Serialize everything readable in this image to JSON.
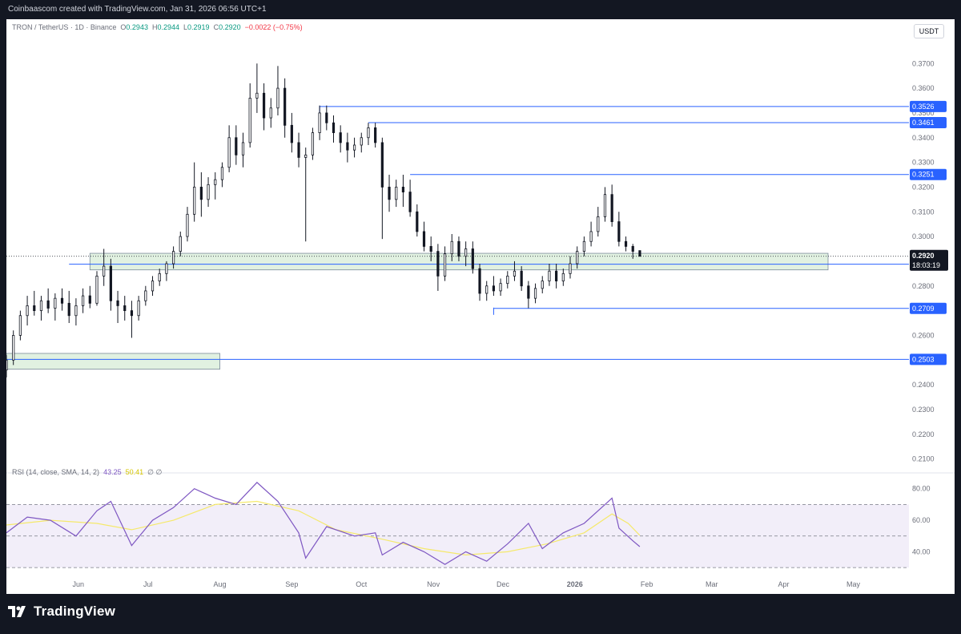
{
  "header": {
    "watermark_text": "Coinbaascom created with TradingView.com, Jan 31, 2026 06:56 UTC+1"
  },
  "branding": {
    "logo_text": "TradingView",
    "logo_icon": "tradingview-logo-icon"
  },
  "chart_legend": {
    "symbol": "TRON / TetherUS · 1D · Binance",
    "open_label": "O",
    "open": "0.2943",
    "high_label": "H",
    "high": "0.2944",
    "low_label": "L",
    "low": "0.2919",
    "close_label": "C",
    "close": "0.2920",
    "change": "−0.0022 (−0.75%)"
  },
  "currency_button": "USDT",
  "rsi_legend": {
    "label": "RSI (14, close, SMA, 14, 2)",
    "rsi_value": "43.25",
    "sma_value": "50.41",
    "extra": "∅ ∅"
  },
  "price_axis": {
    "ticks": [
      "0.3700",
      "0.3600",
      "0.3500",
      "0.3400",
      "0.3300",
      "0.3200",
      "0.3100",
      "0.3000",
      "0.2900",
      "0.2800",
      "0.2700",
      "0.2600",
      "0.2500",
      "0.2400",
      "0.2300",
      "0.2200",
      "0.2100"
    ],
    "current_price": "0.2920",
    "countdown": "18:03:19"
  },
  "rsi_axis": {
    "ticks": [
      "80.00",
      "60.00",
      "40.00"
    ]
  },
  "time_axis": {
    "labels": [
      "Jun",
      "Jul",
      "Aug",
      "Sep",
      "Oct",
      "Nov",
      "Dec",
      "2026",
      "Feb",
      "Mar",
      "Apr",
      "May"
    ]
  },
  "colors": {
    "background": "#131722",
    "panel": "#ffffff",
    "candle": "#131722",
    "level_line": "#2962ff",
    "zone_fill": "#c8e6c9",
    "rsi_line": "#7e57c2",
    "rsi_sma": "#f5e96b",
    "rsi_band": "#ede7f6",
    "price_tag_bg": "#131722"
  },
  "chart_data": {
    "type": "candlestick",
    "symbol": "TRON / TetherUS",
    "interval": "1D",
    "exchange": "Binance",
    "x_range": [
      "2025-05-01",
      "2026-05-25"
    ],
    "y_range": [
      0.205,
      0.373
    ],
    "candles": [
      [
        "2025-05-01",
        0.246,
        0.252,
        0.243,
        0.25
      ],
      [
        "2025-05-04",
        0.25,
        0.262,
        0.248,
        0.26
      ],
      [
        "2025-05-07",
        0.26,
        0.27,
        0.258,
        0.268
      ],
      [
        "2025-05-10",
        0.268,
        0.276,
        0.264,
        0.272
      ],
      [
        "2025-05-13",
        0.272,
        0.278,
        0.268,
        0.27
      ],
      [
        "2025-05-16",
        0.27,
        0.276,
        0.266,
        0.274
      ],
      [
        "2025-05-19",
        0.274,
        0.279,
        0.269,
        0.271
      ],
      [
        "2025-05-22",
        0.271,
        0.277,
        0.266,
        0.275
      ],
      [
        "2025-05-25",
        0.275,
        0.279,
        0.27,
        0.273
      ],
      [
        "2025-05-28",
        0.273,
        0.278,
        0.265,
        0.268
      ],
      [
        "2025-05-31",
        0.268,
        0.275,
        0.264,
        0.272
      ],
      [
        "2025-06-03",
        0.272,
        0.279,
        0.269,
        0.276
      ],
      [
        "2025-06-06",
        0.276,
        0.28,
        0.271,
        0.273
      ],
      [
        "2025-06-09",
        0.273,
        0.286,
        0.272,
        0.284
      ],
      [
        "2025-06-12",
        0.284,
        0.295,
        0.28,
        0.288
      ],
      [
        "2025-06-15",
        0.288,
        0.291,
        0.27,
        0.274
      ],
      [
        "2025-06-18",
        0.274,
        0.278,
        0.265,
        0.272
      ],
      [
        "2025-06-21",
        0.272,
        0.276,
        0.266,
        0.27
      ],
      [
        "2025-06-24",
        0.27,
        0.274,
        0.259,
        0.268
      ],
      [
        "2025-06-27",
        0.268,
        0.276,
        0.266,
        0.274
      ],
      [
        "2025-06-30",
        0.274,
        0.28,
        0.272,
        0.278
      ],
      [
        "2025-07-03",
        0.278,
        0.284,
        0.276,
        0.282
      ],
      [
        "2025-07-06",
        0.282,
        0.287,
        0.28,
        0.285
      ],
      [
        "2025-07-09",
        0.285,
        0.29,
        0.282,
        0.289
      ],
      [
        "2025-07-12",
        0.289,
        0.296,
        0.287,
        0.294
      ],
      [
        "2025-07-15",
        0.294,
        0.302,
        0.292,
        0.3
      ],
      [
        "2025-07-18",
        0.3,
        0.312,
        0.298,
        0.309
      ],
      [
        "2025-07-21",
        0.309,
        0.33,
        0.306,
        0.32
      ],
      [
        "2025-07-24",
        0.32,
        0.326,
        0.308,
        0.315
      ],
      [
        "2025-07-27",
        0.315,
        0.324,
        0.312,
        0.321
      ],
      [
        "2025-07-30",
        0.321,
        0.326,
        0.315,
        0.323
      ],
      [
        "2025-08-02",
        0.323,
        0.33,
        0.32,
        0.328
      ],
      [
        "2025-08-05",
        0.328,
        0.345,
        0.326,
        0.34
      ],
      [
        "2025-08-08",
        0.34,
        0.345,
        0.329,
        0.333
      ],
      [
        "2025-08-11",
        0.333,
        0.342,
        0.328,
        0.338
      ],
      [
        "2025-08-14",
        0.338,
        0.362,
        0.336,
        0.356
      ],
      [
        "2025-08-17",
        0.356,
        0.37,
        0.35,
        0.358
      ],
      [
        "2025-08-20",
        0.358,
        0.362,
        0.343,
        0.348
      ],
      [
        "2025-08-23",
        0.348,
        0.356,
        0.344,
        0.352
      ],
      [
        "2025-08-26",
        0.352,
        0.369,
        0.349,
        0.36
      ],
      [
        "2025-08-29",
        0.36,
        0.364,
        0.34,
        0.345
      ],
      [
        "2025-09-01",
        0.345,
        0.35,
        0.334,
        0.338
      ],
      [
        "2025-09-04",
        0.338,
        0.342,
        0.328,
        0.332
      ],
      [
        "2025-09-07",
        0.332,
        0.336,
        0.298,
        0.333
      ],
      [
        "2025-09-10",
        0.333,
        0.344,
        0.331,
        0.342
      ],
      [
        "2025-09-13",
        0.342,
        0.353,
        0.339,
        0.35
      ],
      [
        "2025-09-16",
        0.35,
        0.353,
        0.343,
        0.346
      ],
      [
        "2025-09-19",
        0.346,
        0.349,
        0.338,
        0.342
      ],
      [
        "2025-09-22",
        0.342,
        0.345,
        0.334,
        0.338
      ],
      [
        "2025-09-25",
        0.338,
        0.342,
        0.33,
        0.335
      ],
      [
        "2025-09-28",
        0.335,
        0.34,
        0.332,
        0.337
      ],
      [
        "2025-10-01",
        0.337,
        0.342,
        0.334,
        0.34
      ],
      [
        "2025-10-04",
        0.34,
        0.346,
        0.337,
        0.344
      ],
      [
        "2025-10-07",
        0.344,
        0.346,
        0.336,
        0.338
      ],
      [
        "2025-10-10",
        0.338,
        0.34,
        0.299,
        0.32
      ],
      [
        "2025-10-13",
        0.32,
        0.325,
        0.31,
        0.315
      ],
      [
        "2025-10-16",
        0.315,
        0.323,
        0.312,
        0.32
      ],
      [
        "2025-10-19",
        0.32,
        0.325,
        0.312,
        0.318
      ],
      [
        "2025-10-22",
        0.318,
        0.323,
        0.308,
        0.31
      ],
      [
        "2025-10-25",
        0.31,
        0.313,
        0.3,
        0.302
      ],
      [
        "2025-10-28",
        0.302,
        0.306,
        0.294,
        0.296
      ],
      [
        "2025-10-31",
        0.296,
        0.3,
        0.29,
        0.294
      ],
      [
        "2025-11-03",
        0.294,
        0.297,
        0.278,
        0.284
      ],
      [
        "2025-11-06",
        0.284,
        0.296,
        0.282,
        0.293
      ],
      [
        "2025-11-09",
        0.293,
        0.301,
        0.29,
        0.298
      ],
      [
        "2025-11-12",
        0.298,
        0.3,
        0.29,
        0.292
      ],
      [
        "2025-11-15",
        0.292,
        0.298,
        0.288,
        0.295
      ],
      [
        "2025-11-18",
        0.295,
        0.298,
        0.285,
        0.287
      ],
      [
        "2025-11-21",
        0.287,
        0.289,
        0.274,
        0.277
      ],
      [
        "2025-11-24",
        0.277,
        0.282,
        0.274,
        0.28
      ],
      [
        "2025-11-27",
        0.28,
        0.284,
        0.276,
        0.278
      ],
      [
        "2025-11-30",
        0.278,
        0.283,
        0.276,
        0.281
      ],
      [
        "2025-12-03",
        0.281,
        0.286,
        0.279,
        0.284
      ],
      [
        "2025-12-06",
        0.284,
        0.29,
        0.282,
        0.286
      ],
      [
        "2025-12-09",
        0.286,
        0.288,
        0.278,
        0.28
      ],
      [
        "2025-12-12",
        0.28,
        0.282,
        0.271,
        0.275
      ],
      [
        "2025-12-15",
        0.275,
        0.281,
        0.273,
        0.279
      ],
      [
        "2025-12-18",
        0.279,
        0.284,
        0.277,
        0.282
      ],
      [
        "2025-12-21",
        0.282,
        0.289,
        0.28,
        0.286
      ],
      [
        "2025-12-24",
        0.286,
        0.289,
        0.279,
        0.282
      ],
      [
        "2025-12-27",
        0.282,
        0.287,
        0.28,
        0.285
      ],
      [
        "2025-12-30",
        0.285,
        0.292,
        0.283,
        0.289
      ],
      [
        "2026-01-02",
        0.289,
        0.296,
        0.287,
        0.294
      ],
      [
        "2026-01-05",
        0.294,
        0.3,
        0.292,
        0.298
      ],
      [
        "2026-01-08",
        0.298,
        0.306,
        0.296,
        0.302
      ],
      [
        "2026-01-11",
        0.302,
        0.312,
        0.3,
        0.308
      ],
      [
        "2026-01-14",
        0.308,
        0.32,
        0.306,
        0.317
      ],
      [
        "2026-01-17",
        0.317,
        0.321,
        0.304,
        0.306
      ],
      [
        "2026-01-20",
        0.306,
        0.31,
        0.296,
        0.298
      ],
      [
        "2026-01-23",
        0.298,
        0.3,
        0.294,
        0.296
      ],
      [
        "2026-01-26",
        0.296,
        0.297,
        0.291,
        0.294
      ],
      [
        "2026-01-29",
        0.2943,
        0.2944,
        0.2919,
        0.292
      ]
    ],
    "horizontal_levels": [
      0.3526,
      0.3461,
      0.3251,
      0.2888,
      0.2709,
      0.2503
    ],
    "zones": [
      {
        "from_date": "2025-06-06",
        "to_date": "2026-05-25",
        "low": 0.2865,
        "high": 0.2932
      },
      {
        "from_date": "2025-05-01",
        "to_date": "2025-08-01",
        "low": 0.2463,
        "high": 0.2527
      }
    ],
    "rsi": {
      "overbought": 70,
      "midline": 50,
      "oversold": 30,
      "axis_range": [
        27,
        88
      ],
      "values": [
        [
          "2025-05-01",
          52
        ],
        [
          "2025-05-10",
          62
        ],
        [
          "2025-05-20",
          60
        ],
        [
          "2025-05-31",
          50
        ],
        [
          "2025-06-09",
          66
        ],
        [
          "2025-06-15",
          72
        ],
        [
          "2025-06-24",
          44
        ],
        [
          "2025-07-03",
          60
        ],
        [
          "2025-07-12",
          68
        ],
        [
          "2025-07-21",
          80
        ],
        [
          "2025-07-30",
          74
        ],
        [
          "2025-08-08",
          70
        ],
        [
          "2025-08-17",
          84
        ],
        [
          "2025-08-26",
          72
        ],
        [
          "2025-09-04",
          52
        ],
        [
          "2025-09-07",
          36
        ],
        [
          "2025-09-16",
          56
        ],
        [
          "2025-09-28",
          50
        ],
        [
          "2025-10-07",
          52
        ],
        [
          "2025-10-10",
          38
        ],
        [
          "2025-10-19",
          46
        ],
        [
          "2025-10-28",
          40
        ],
        [
          "2025-11-06",
          32
        ],
        [
          "2025-11-15",
          40
        ],
        [
          "2025-11-24",
          34
        ],
        [
          "2025-12-03",
          45
        ],
        [
          "2025-12-12",
          58
        ],
        [
          "2025-12-18",
          42
        ],
        [
          "2025-12-27",
          52
        ],
        [
          "2026-01-05",
          58
        ],
        [
          "2026-01-14",
          70
        ],
        [
          "2026-01-17",
          74
        ],
        [
          "2026-01-20",
          55
        ],
        [
          "2026-01-26",
          47
        ],
        [
          "2026-01-29",
          43.25
        ]
      ],
      "sma": [
        [
          "2025-05-01",
          57
        ],
        [
          "2025-05-20",
          60
        ],
        [
          "2025-06-09",
          58
        ],
        [
          "2025-06-24",
          54
        ],
        [
          "2025-07-12",
          60
        ],
        [
          "2025-07-30",
          70
        ],
        [
          "2025-08-17",
          72
        ],
        [
          "2025-09-04",
          66
        ],
        [
          "2025-09-20",
          54
        ],
        [
          "2025-10-10",
          48
        ],
        [
          "2025-10-28",
          42
        ],
        [
          "2025-11-15",
          38
        ],
        [
          "2025-12-03",
          40
        ],
        [
          "2025-12-20",
          45
        ],
        [
          "2026-01-05",
          52
        ],
        [
          "2026-01-17",
          64
        ],
        [
          "2026-01-24",
          58
        ],
        [
          "2026-01-29",
          50.41
        ]
      ]
    }
  }
}
